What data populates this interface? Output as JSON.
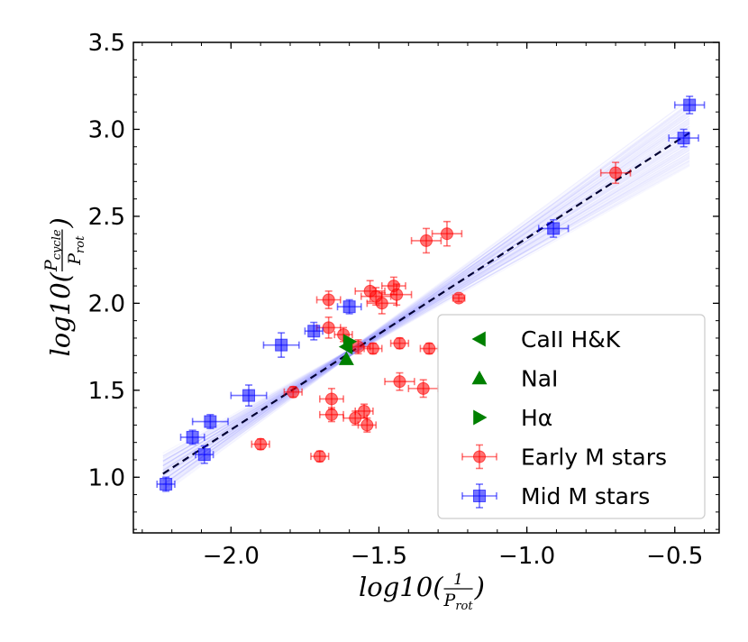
{
  "chart_data": {
    "type": "scatter",
    "xlabel": {
      "base": "log10(",
      "frac_num": "1",
      "frac_den_main": "P",
      "frac_den_sub": "rot",
      "close": ")"
    },
    "ylabel": {
      "base": "log10(",
      "num_main": "P",
      "num_sub": "cycle",
      "den_main": "P",
      "den_sub": "rot",
      "close": ")"
    },
    "xlim": [
      -2.33,
      -0.35
    ],
    "ylim": [
      0.68,
      3.5
    ],
    "x_ticks": [
      -2.0,
      -1.5,
      -1.0,
      -0.5
    ],
    "x_tick_labels": [
      "−2.0",
      "−1.5",
      "−1.0",
      "−0.5"
    ],
    "y_ticks": [
      1.0,
      1.5,
      2.0,
      2.5,
      3.0,
      3.5
    ],
    "y_tick_labels": [
      "1.0",
      "1.5",
      "2.0",
      "2.5",
      "3.0",
      "3.5"
    ],
    "fit_line": {
      "x": [
        -2.23,
        -0.45
      ],
      "y": [
        1.02,
        2.98
      ],
      "style": "dashed",
      "color": "#000033"
    },
    "legend_position": "lower-right",
    "legend": [
      {
        "label": "CaII H&K",
        "marker": "triangle-left",
        "color": "#008000"
      },
      {
        "label": "NaI",
        "marker": "triangle-up",
        "color": "#008000"
      },
      {
        "label": "Hα",
        "marker": "triangle-right",
        "color": "#008000"
      },
      {
        "label": "Early M stars",
        "marker": "circle",
        "color": "#ff0000"
      },
      {
        "label": "Mid M stars",
        "marker": "square",
        "color": "#0000ff"
      }
    ],
    "series": [
      {
        "name": "Early M stars",
        "marker": "circle",
        "color": "#ff0000",
        "points": [
          {
            "x": -1.9,
            "y": 1.19,
            "xerr": 0.03,
            "yerr": 0.03
          },
          {
            "x": -1.79,
            "y": 1.49,
            "xerr": 0.03,
            "yerr": 0.03
          },
          {
            "x": -1.7,
            "y": 1.12,
            "xerr": 0.03,
            "yerr": 0.03
          },
          {
            "x": -1.67,
            "y": 2.02,
            "xerr": 0.04,
            "yerr": 0.05
          },
          {
            "x": -1.67,
            "y": 1.86,
            "xerr": 0.04,
            "yerr": 0.06
          },
          {
            "x": -1.66,
            "y": 1.45,
            "xerr": 0.04,
            "yerr": 0.06
          },
          {
            "x": -1.66,
            "y": 1.36,
            "xerr": 0.04,
            "yerr": 0.04
          },
          {
            "x": -1.62,
            "y": 1.82,
            "xerr": 0.03,
            "yerr": 0.04
          },
          {
            "x": -1.58,
            "y": 1.34,
            "xerr": 0.04,
            "yerr": 0.04
          },
          {
            "x": -1.57,
            "y": 1.75,
            "xerr": 0.04,
            "yerr": 0.04
          },
          {
            "x": -1.55,
            "y": 1.38,
            "xerr": 0.03,
            "yerr": 0.04
          },
          {
            "x": -1.54,
            "y": 1.3,
            "xerr": 0.03,
            "yerr": 0.04
          },
          {
            "x": -1.53,
            "y": 2.07,
            "xerr": 0.05,
            "yerr": 0.06
          },
          {
            "x": -1.52,
            "y": 1.74,
            "xerr": 0.03,
            "yerr": 0.03
          },
          {
            "x": -1.51,
            "y": 2.04,
            "xerr": 0.05,
            "yerr": 0.05
          },
          {
            "x": -1.49,
            "y": 2.0,
            "xerr": 0.05,
            "yerr": 0.06
          },
          {
            "x": -1.45,
            "y": 2.1,
            "xerr": 0.04,
            "yerr": 0.05
          },
          {
            "x": -1.44,
            "y": 2.05,
            "xerr": 0.05,
            "yerr": 0.06
          },
          {
            "x": -1.43,
            "y": 1.77,
            "xerr": 0.03,
            "yerr": 0.03
          },
          {
            "x": -1.43,
            "y": 1.55,
            "xerr": 0.05,
            "yerr": 0.05
          },
          {
            "x": -1.35,
            "y": 1.51,
            "xerr": 0.05,
            "yerr": 0.05
          },
          {
            "x": -1.34,
            "y": 2.36,
            "xerr": 0.05,
            "yerr": 0.07
          },
          {
            "x": -1.33,
            "y": 1.74,
            "xerr": 0.03,
            "yerr": 0.03
          },
          {
            "x": -1.27,
            "y": 2.4,
            "xerr": 0.05,
            "yerr": 0.07
          },
          {
            "x": -1.23,
            "y": 2.03,
            "xerr": 0.02,
            "yerr": 0.02
          },
          {
            "x": -0.7,
            "y": 2.75,
            "xerr": 0.05,
            "yerr": 0.06
          }
        ]
      },
      {
        "name": "Mid M stars",
        "marker": "square",
        "color": "#0000ff",
        "points": [
          {
            "x": -2.22,
            "y": 0.96,
            "xerr": 0.03,
            "yerr": 0.04
          },
          {
            "x": -2.13,
            "y": 1.23,
            "xerr": 0.04,
            "yerr": 0.04
          },
          {
            "x": -2.09,
            "y": 1.13,
            "xerr": 0.03,
            "yerr": 0.05
          },
          {
            "x": -2.07,
            "y": 1.32,
            "xerr": 0.06,
            "yerr": 0.04
          },
          {
            "x": -1.94,
            "y": 1.47,
            "xerr": 0.06,
            "yerr": 0.06
          },
          {
            "x": -1.83,
            "y": 1.76,
            "xerr": 0.06,
            "yerr": 0.07
          },
          {
            "x": -1.72,
            "y": 1.84,
            "xerr": 0.03,
            "yerr": 0.05
          },
          {
            "x": -1.6,
            "y": 1.98,
            "xerr": 0.04,
            "yerr": 0.04
          },
          {
            "x": -0.91,
            "y": 2.43,
            "xerr": 0.05,
            "yerr": 0.05
          },
          {
            "x": -0.47,
            "y": 2.95,
            "xerr": 0.05,
            "yerr": 0.05
          },
          {
            "x": -0.45,
            "y": 3.14,
            "xerr": 0.05,
            "yerr": 0.05
          }
        ]
      },
      {
        "name": "CaII H&K",
        "marker": "triangle-left",
        "color": "#008000",
        "points": [
          {
            "x": -1.61,
            "y": 1.75
          }
        ]
      },
      {
        "name": "NaI",
        "marker": "triangle-up",
        "color": "#008000",
        "points": [
          {
            "x": -1.61,
            "y": 1.68
          }
        ]
      },
      {
        "name": "Hα",
        "marker": "triangle-right",
        "color": "#008000",
        "points": [
          {
            "x": -1.6,
            "y": 1.78
          }
        ]
      }
    ]
  }
}
